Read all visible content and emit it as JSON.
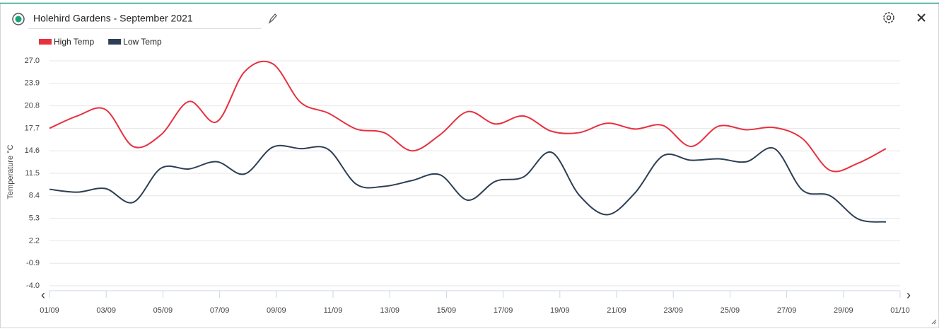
{
  "chart_data": {
    "type": "line",
    "title": "Holehird Gardens - September 2021",
    "ylabel": "Temperature °C",
    "legend": "top-left",
    "grid": true,
    "xlim": [
      0,
      30
    ],
    "xticks": [
      {
        "value": 0,
        "label": "01/09"
      },
      {
        "value": 2,
        "label": "03/09"
      },
      {
        "value": 4,
        "label": "05/09"
      },
      {
        "value": 6,
        "label": "07/09"
      },
      {
        "value": 8,
        "label": "09/09"
      },
      {
        "value": 10,
        "label": "11/09"
      },
      {
        "value": 12,
        "label": "13/09"
      },
      {
        "value": 14,
        "label": "15/09"
      },
      {
        "value": 16,
        "label": "17/09"
      },
      {
        "value": 18,
        "label": "19/09"
      },
      {
        "value": 20,
        "label": "21/09"
      },
      {
        "value": 22,
        "label": "23/09"
      },
      {
        "value": 24,
        "label": "25/09"
      },
      {
        "value": 26,
        "label": "27/09"
      },
      {
        "value": 28,
        "label": "29/09"
      },
      {
        "value": 30,
        "label": "01/10"
      }
    ],
    "ylim": [
      -4,
      27
    ],
    "yticks": [
      {
        "value": 27,
        "label": "27.0"
      },
      {
        "value": 23.9,
        "label": "23.9"
      },
      {
        "value": 20.8,
        "label": "20.8"
      },
      {
        "value": 17.7,
        "label": "17.7"
      },
      {
        "value": 14.6,
        "label": "14.6"
      },
      {
        "value": 11.5,
        "label": "11.5"
      },
      {
        "value": 8.4,
        "label": "8.4"
      },
      {
        "value": 5.3,
        "label": "5.3"
      },
      {
        "value": 2.2,
        "label": "2.2"
      },
      {
        "value": -0.9,
        "label": "-0.9"
      },
      {
        "value": -4,
        "label": "-4.0"
      }
    ],
    "x": [
      0,
      0.98,
      1.97,
      2.95,
      3.93,
      4.92,
      5.9,
      6.88,
      7.87,
      8.85,
      9.83,
      10.82,
      11.8,
      12.78,
      13.77,
      14.75,
      15.73,
      16.72,
      17.7,
      18.68,
      19.67,
      20.65,
      21.63,
      22.62,
      23.6,
      24.58,
      25.57,
      26.55,
      27.53,
      28.52,
      29.5
    ],
    "series": [
      {
        "name": "High Temp",
        "color": "#e8303f",
        "values": [
          17.7,
          19.4,
          20.3,
          15.2,
          16.8,
          21.4,
          18.6,
          25.5,
          26.6,
          21.3,
          19.8,
          17.6,
          17.1,
          14.6,
          16.8,
          20.0,
          18.3,
          19.4,
          17.3,
          17.1,
          18.4,
          17.6,
          18.1,
          15.2,
          18.0,
          17.5,
          17.8,
          16.3,
          11.9,
          12.9,
          14.9
        ]
      },
      {
        "name": "Low Temp",
        "color": "#2e3e55",
        "values": [
          9.3,
          8.9,
          9.4,
          7.5,
          12.2,
          12.1,
          13.1,
          11.4,
          15.1,
          14.9,
          14.8,
          10.0,
          9.7,
          10.5,
          11.3,
          7.8,
          10.4,
          11.0,
          14.4,
          8.5,
          5.8,
          8.8,
          13.9,
          13.3,
          13.5,
          13.1,
          14.9,
          9.2,
          8.4,
          5.2,
          4.8
        ]
      }
    ]
  }
}
